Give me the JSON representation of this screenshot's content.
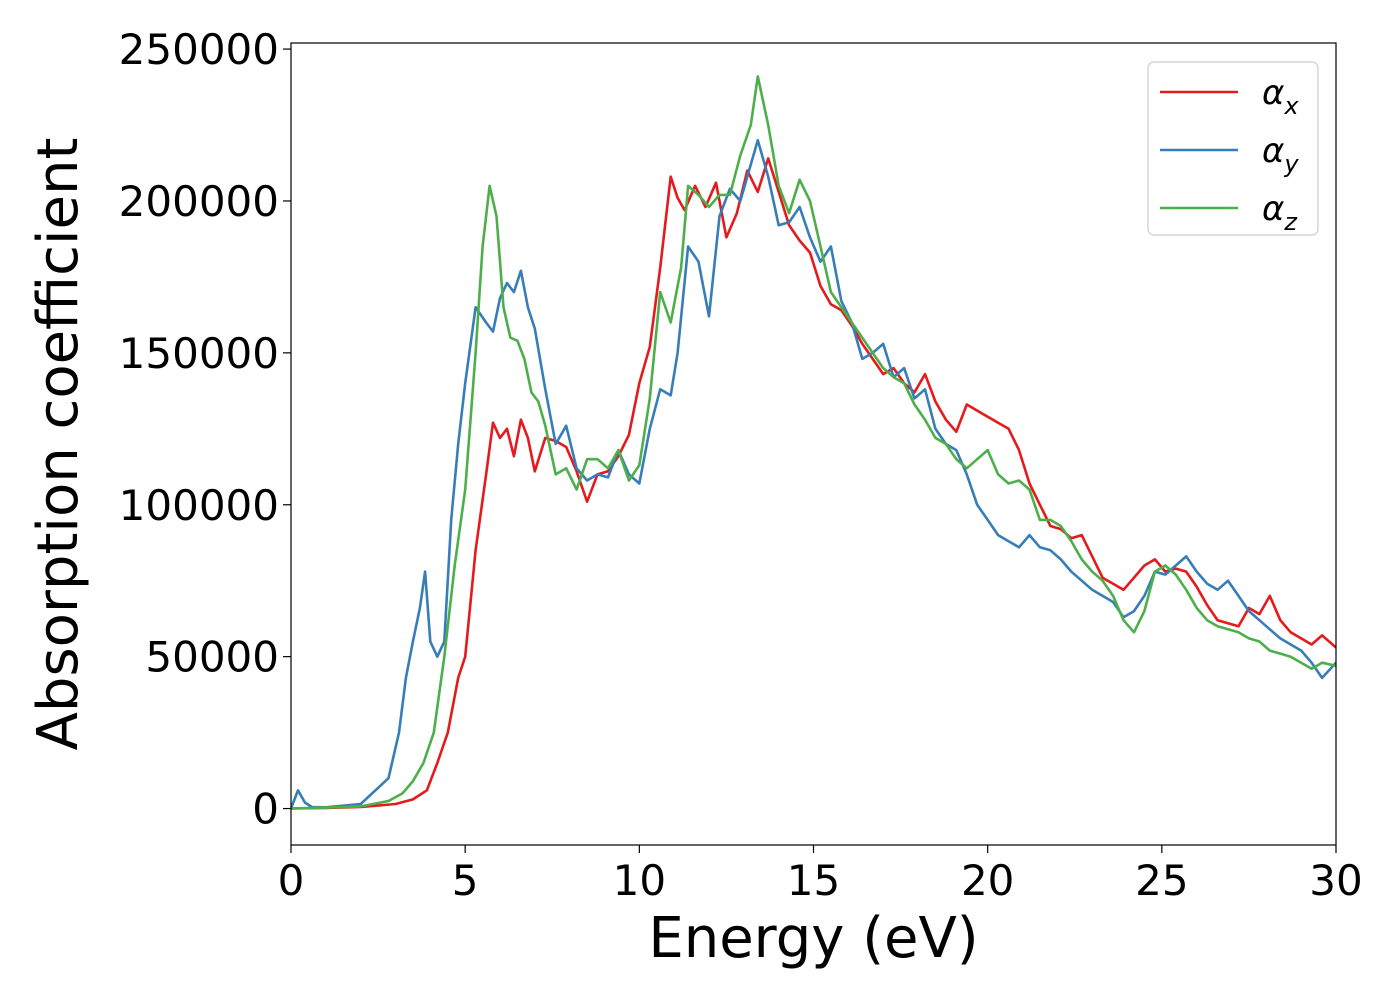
{
  "chart_data": {
    "type": "line",
    "title": "",
    "xlabel": "Energy (eV)",
    "ylabel": "Absorption coefficient",
    "xlim": [
      0,
      30
    ],
    "ylim": [
      -12000,
      252000
    ],
    "xticks": [
      0,
      5,
      10,
      15,
      20,
      25,
      30
    ],
    "xtick_labels": [
      "0",
      "5",
      "10",
      "15",
      "20",
      "25",
      "30"
    ],
    "yticks": [
      0,
      50000,
      100000,
      150000,
      200000,
      250000
    ],
    "ytick_labels": [
      "0",
      "50000",
      "100000",
      "150000",
      "200000",
      "250000"
    ],
    "grid": false,
    "legend_position": "top-right",
    "series": [
      {
        "name": "α_x",
        "legend_base": "α",
        "legend_sub": "x",
        "color": "#e41a1c",
        "x": [
          0,
          1,
          2,
          3,
          3.5,
          3.9,
          4.2,
          4.5,
          4.8,
          5.0,
          5.3,
          5.6,
          5.8,
          6.0,
          6.2,
          6.4,
          6.6,
          6.8,
          7.0,
          7.3,
          7.6,
          7.9,
          8.2,
          8.5,
          8.8,
          9.1,
          9.4,
          9.7,
          10.0,
          10.3,
          10.6,
          10.9,
          11.1,
          11.3,
          11.6,
          11.9,
          12.2,
          12.5,
          12.8,
          13.1,
          13.4,
          13.7,
          14.0,
          14.3,
          14.6,
          14.9,
          15.2,
          15.5,
          15.8,
          16.1,
          16.4,
          16.7,
          17.0,
          17.3,
          17.6,
          17.9,
          18.2,
          18.5,
          18.8,
          19.1,
          19.4,
          19.7,
          20.0,
          20.3,
          20.6,
          20.9,
          21.2,
          21.5,
          21.8,
          22.1,
          22.4,
          22.7,
          23.0,
          23.3,
          23.6,
          23.9,
          24.2,
          24.5,
          24.8,
          25.1,
          25.4,
          25.7,
          26.0,
          26.3,
          26.6,
          26.9,
          27.2,
          27.5,
          27.8,
          28.1,
          28.4,
          28.7,
          29.0,
          29.3,
          29.6,
          30.0
        ],
        "y": [
          0,
          200,
          500,
          1500,
          3000,
          6000,
          15000,
          25000,
          43000,
          50000,
          85000,
          110000,
          127000,
          122000,
          125000,
          116000,
          128000,
          122000,
          111000,
          122000,
          121000,
          119000,
          111000,
          101000,
          110000,
          111000,
          116000,
          123000,
          140000,
          152000,
          178000,
          208000,
          201000,
          197000,
          205000,
          198000,
          206000,
          188000,
          196000,
          210000,
          203000,
          214000,
          203000,
          192000,
          187000,
          183000,
          172000,
          166000,
          164000,
          159000,
          153000,
          148000,
          143000,
          145000,
          140000,
          137000,
          143000,
          134000,
          128000,
          124000,
          133000,
          131000,
          129000,
          127000,
          125000,
          118000,
          107000,
          100000,
          93000,
          92000,
          89000,
          90000,
          83000,
          76000,
          74000,
          72000,
          76000,
          80000,
          82000,
          78000,
          79000,
          78000,
          73000,
          67000,
          62000,
          61000,
          60000,
          66000,
          64000,
          70000,
          62000,
          58000,
          56000,
          54000,
          57000,
          53000
        ]
      },
      {
        "name": "α_y",
        "legend_base": "α",
        "legend_sub": "y",
        "color": "#377eb8",
        "x": [
          0,
          0.2,
          0.4,
          0.6,
          1.0,
          2.0,
          2.8,
          3.1,
          3.3,
          3.5,
          3.7,
          3.85,
          4.0,
          4.2,
          4.4,
          4.6,
          4.8,
          5.0,
          5.3,
          5.6,
          5.8,
          6.0,
          6.2,
          6.4,
          6.6,
          6.8,
          7.0,
          7.3,
          7.6,
          7.9,
          8.2,
          8.5,
          8.8,
          9.1,
          9.4,
          9.7,
          10.0,
          10.3,
          10.6,
          10.9,
          11.1,
          11.4,
          11.7,
          12.0,
          12.3,
          12.6,
          12.9,
          13.2,
          13.4,
          13.7,
          14.0,
          14.3,
          14.6,
          14.9,
          15.2,
          15.5,
          15.8,
          16.1,
          16.4,
          16.7,
          17.0,
          17.3,
          17.6,
          17.9,
          18.2,
          18.5,
          18.8,
          19.1,
          19.4,
          19.7,
          20.0,
          20.3,
          20.6,
          20.9,
          21.2,
          21.5,
          21.8,
          22.1,
          22.4,
          22.7,
          23.0,
          23.3,
          23.6,
          23.9,
          24.2,
          24.5,
          24.8,
          25.1,
          25.4,
          25.7,
          26.0,
          26.3,
          26.6,
          26.9,
          27.2,
          27.5,
          27.8,
          28.1,
          28.4,
          28.7,
          29.0,
          29.3,
          29.6,
          30.0
        ],
        "y": [
          0,
          6000,
          2000,
          500,
          400,
          1500,
          10000,
          25000,
          43000,
          55000,
          66000,
          78000,
          55000,
          50000,
          55000,
          95000,
          120000,
          140000,
          165000,
          160000,
          157000,
          168000,
          173000,
          170000,
          177000,
          165000,
          158000,
          138000,
          120000,
          126000,
          112000,
          108000,
          110000,
          109000,
          118000,
          110000,
          107000,
          125000,
          138000,
          136000,
          150000,
          185000,
          180000,
          162000,
          195000,
          204000,
          200000,
          212000,
          220000,
          208000,
          192000,
          193000,
          198000,
          188000,
          180000,
          185000,
          167000,
          160000,
          148000,
          150000,
          153000,
          142000,
          145000,
          135000,
          138000,
          125000,
          120000,
          118000,
          110000,
          100000,
          95000,
          90000,
          88000,
          86000,
          90000,
          86000,
          85000,
          82000,
          78000,
          75000,
          72000,
          70000,
          68000,
          63000,
          65000,
          70000,
          78000,
          77000,
          80000,
          83000,
          78000,
          74000,
          72000,
          75000,
          70000,
          65000,
          62000,
          59000,
          56000,
          54000,
          52000,
          48000,
          43000,
          48000
        ],
        "_note": ""
      },
      {
        "name": "α_z",
        "legend_base": "α",
        "legend_sub": "z",
        "color": "#4daf4a",
        "x": [
          0,
          1,
          2,
          2.8,
          3.2,
          3.5,
          3.8,
          4.1,
          4.4,
          4.7,
          5.0,
          5.3,
          5.5,
          5.7,
          5.9,
          6.1,
          6.3,
          6.5,
          6.7,
          6.9,
          7.1,
          7.3,
          7.6,
          7.9,
          8.2,
          8.5,
          8.8,
          9.1,
          9.4,
          9.7,
          10.0,
          10.3,
          10.6,
          10.9,
          11.2,
          11.4,
          11.7,
          12.0,
          12.3,
          12.6,
          12.9,
          13.2,
          13.4,
          13.7,
          14.0,
          14.3,
          14.6,
          14.9,
          15.2,
          15.5,
          15.8,
          16.1,
          16.4,
          16.7,
          17.0,
          17.3,
          17.6,
          17.9,
          18.2,
          18.5,
          18.8,
          19.1,
          19.4,
          19.7,
          20.0,
          20.3,
          20.6,
          20.9,
          21.2,
          21.5,
          21.8,
          22.1,
          22.4,
          22.7,
          23.0,
          23.3,
          23.6,
          23.9,
          24.2,
          24.5,
          24.8,
          25.1,
          25.4,
          25.7,
          26.0,
          26.3,
          26.6,
          26.9,
          27.2,
          27.5,
          27.8,
          28.1,
          28.4,
          28.7,
          29.0,
          29.3,
          29.6,
          30.0
        ],
        "y": [
          0,
          300,
          700,
          2500,
          5000,
          9000,
          15000,
          25000,
          50000,
          80000,
          105000,
          150000,
          185000,
          205000,
          195000,
          165000,
          155000,
          154000,
          148000,
          137000,
          134000,
          126000,
          110000,
          112000,
          105000,
          115000,
          115000,
          112000,
          118000,
          108000,
          113000,
          135000,
          170000,
          160000,
          178000,
          205000,
          202000,
          198000,
          202000,
          202000,
          215000,
          225000,
          241000,
          225000,
          205000,
          196000,
          207000,
          200000,
          185000,
          170000,
          165000,
          160000,
          155000,
          150000,
          145000,
          142000,
          140000,
          133000,
          128000,
          122000,
          120000,
          115000,
          112000,
          115000,
          118000,
          110000,
          107000,
          108000,
          105000,
          95000,
          95000,
          93000,
          88000,
          82000,
          78000,
          75000,
          70000,
          62000,
          58000,
          65000,
          78000,
          80000,
          77000,
          72000,
          66000,
          62000,
          60000,
          59000,
          58000,
          56000,
          55000,
          52000,
          51000,
          50000,
          48000,
          46000,
          48000,
          47000
        ]
      }
    ]
  }
}
